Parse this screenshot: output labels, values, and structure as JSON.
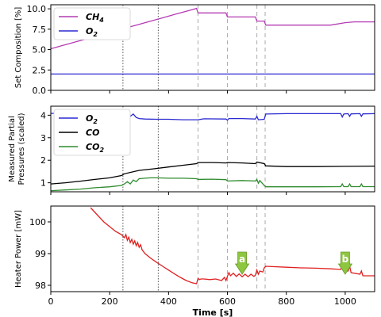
{
  "chart_data": [
    {
      "type": "line",
      "ylabel": "Set Composition [%]",
      "xlim": [
        0,
        1100
      ],
      "ylim": [
        0,
        10.5
      ],
      "yticks": [
        0.0,
        2.5,
        5.0,
        7.5,
        10.0
      ],
      "yticklabels": [
        "0.0",
        "2.5",
        "5.0",
        "7.5",
        "10.0"
      ],
      "grid": false,
      "legend": "top-left",
      "series": [
        {
          "name": "CH",
          "name_subscript": "4",
          "color": "#b43cb4",
          "x": [
            0,
            20,
            40,
            60,
            80,
            100,
            120,
            140,
            160,
            180,
            200,
            220,
            240,
            260,
            280,
            300,
            320,
            340,
            360,
            380,
            400,
            420,
            440,
            460,
            480,
            495,
            500,
            595,
            600,
            695,
            700,
            725,
            730,
            950,
            1000,
            1030,
            1100
          ],
          "y": [
            5.1,
            5.3,
            5.5,
            5.7,
            5.9,
            6.1,
            6.3,
            6.5,
            6.7,
            6.9,
            7.1,
            7.3,
            7.5,
            7.7,
            7.9,
            8.1,
            8.3,
            8.5,
            8.7,
            8.9,
            9.1,
            9.3,
            9.5,
            9.7,
            9.9,
            10.05,
            9.5,
            9.5,
            9.0,
            9.0,
            8.5,
            8.5,
            8.0,
            8.0,
            8.3,
            8.4,
            8.4
          ]
        },
        {
          "name": "O",
          "name_subscript": "2",
          "color": "#2a2ad0",
          "x": [
            0,
            1100
          ],
          "y": [
            2.0,
            2.0
          ]
        }
      ]
    },
    {
      "type": "line",
      "ylabel": [
        "Measured Partial",
        "Pressures (scaled)"
      ],
      "xlim": [
        0,
        1100
      ],
      "ylim": [
        0.6,
        4.4
      ],
      "yticks": [
        1,
        2,
        3,
        4
      ],
      "yticklabels": [
        "1",
        "2",
        "3",
        "4"
      ],
      "grid": false,
      "legend": "top-left",
      "series": [
        {
          "name": "O",
          "name_subscript": "2",
          "color": "#2a2ad0",
          "x": [
            0,
            100,
            200,
            240,
            250,
            270,
            280,
            290,
            300,
            320,
            360,
            400,
            450,
            500,
            520,
            595,
            600,
            605,
            650,
            695,
            700,
            705,
            725,
            730,
            800,
            900,
            985,
            990,
            995,
            1010,
            1015,
            1020,
            1050,
            1055,
            1060,
            1100
          ],
          "y": [
            4.08,
            4.1,
            4.1,
            4.08,
            4.0,
            3.95,
            4.05,
            3.9,
            3.85,
            3.83,
            3.82,
            3.82,
            3.8,
            3.8,
            3.84,
            3.83,
            3.78,
            3.85,
            3.85,
            3.83,
            3.95,
            3.8,
            3.82,
            4.05,
            4.07,
            4.07,
            4.07,
            3.92,
            4.05,
            4.07,
            3.95,
            4.06,
            4.07,
            3.95,
            4.06,
            4.07
          ]
        },
        {
          "name": "CO",
          "name_subscript": "",
          "color": "#000000",
          "x": [
            0,
            50,
            100,
            150,
            200,
            240,
            250,
            300,
            350,
            400,
            450,
            495,
            500,
            550,
            595,
            600,
            650,
            695,
            700,
            725,
            730,
            800,
            900,
            1000,
            1100
          ],
          "y": [
            0.95,
            1.0,
            1.07,
            1.15,
            1.22,
            1.32,
            1.4,
            1.55,
            1.62,
            1.7,
            1.78,
            1.85,
            1.9,
            1.9,
            1.88,
            1.9,
            1.88,
            1.85,
            1.92,
            1.85,
            1.75,
            1.72,
            1.72,
            1.73,
            1.74
          ]
        },
        {
          "name": "CO",
          "name_subscript": "2",
          "color": "#2e8b2e",
          "x": [
            0,
            50,
            100,
            150,
            200,
            240,
            250,
            260,
            270,
            280,
            290,
            300,
            320,
            340,
            360,
            400,
            450,
            495,
            500,
            550,
            595,
            600,
            650,
            695,
            700,
            705,
            710,
            725,
            730,
            800,
            900,
            985,
            990,
            995,
            1010,
            1015,
            1020,
            1050,
            1055,
            1060,
            1100
          ],
          "y": [
            0.65,
            0.68,
            0.72,
            0.78,
            0.82,
            0.88,
            0.95,
            1.05,
            0.95,
            1.12,
            1.05,
            1.18,
            1.2,
            1.22,
            1.22,
            1.2,
            1.2,
            1.18,
            1.15,
            1.16,
            1.14,
            1.08,
            1.1,
            1.08,
            1.15,
            0.98,
            1.1,
            0.88,
            0.82,
            0.82,
            0.82,
            0.83,
            0.95,
            0.83,
            0.83,
            0.95,
            0.83,
            0.83,
            0.95,
            0.83,
            0.83
          ]
        }
      ]
    },
    {
      "type": "line",
      "ylabel": "Heater Power [mW]",
      "xlabel": "Time [s]",
      "xlim": [
        0,
        1100
      ],
      "ylim": [
        97.8,
        100.5
      ],
      "xticks": [
        0,
        200,
        400,
        600,
        800,
        1000
      ],
      "xticklabels": [
        "0",
        "200",
        "400",
        "600",
        "800",
        "1000"
      ],
      "yticks": [
        98,
        99,
        100
      ],
      "yticklabels": [
        "98",
        "99",
        "100"
      ],
      "grid": false,
      "series": [
        {
          "name": "",
          "color": "#e02020",
          "x": [
            135,
            160,
            180,
            200,
            220,
            240,
            250,
            255,
            260,
            265,
            270,
            275,
            280,
            285,
            290,
            295,
            300,
            305,
            310,
            320,
            340,
            360,
            380,
            400,
            420,
            440,
            460,
            480,
            495,
            500,
            505,
            510,
            520,
            540,
            560,
            580,
            590,
            595,
            600,
            605,
            610,
            620,
            630,
            640,
            650,
            660,
            670,
            680,
            690,
            695,
            700,
            705,
            710,
            720,
            725,
            730,
            800,
            850,
            900,
            950,
            985,
            990,
            995,
            1010,
            1015,
            1020,
            1050,
            1055,
            1060,
            1100
          ],
          "y": [
            100.45,
            100.2,
            100.0,
            99.85,
            99.7,
            99.6,
            99.5,
            99.6,
            99.42,
            99.52,
            99.35,
            99.45,
            99.3,
            99.4,
            99.25,
            99.35,
            99.2,
            99.28,
            99.12,
            99.0,
            98.85,
            98.72,
            98.6,
            98.48,
            98.36,
            98.25,
            98.15,
            98.08,
            98.05,
            98.22,
            98.18,
            98.2,
            98.2,
            98.18,
            98.2,
            98.15,
            98.25,
            98.15,
            98.28,
            98.4,
            98.3,
            98.38,
            98.28,
            98.36,
            98.27,
            98.35,
            98.27,
            98.35,
            98.28,
            98.32,
            98.48,
            98.35,
            98.45,
            98.42,
            98.55,
            98.6,
            98.57,
            98.55,
            98.54,
            98.52,
            98.5,
            98.65,
            98.47,
            98.45,
            98.6,
            98.4,
            98.35,
            98.45,
            98.3,
            98.3
          ]
        }
      ]
    }
  ],
  "event_markers": [
    {
      "x": 245,
      "style": "dotted",
      "color": "#555555"
    },
    {
      "x": 365,
      "style": "dotted",
      "color": "#555555"
    },
    {
      "x": 500,
      "style": "dashed",
      "color": "#aaaaaa"
    },
    {
      "x": 600,
      "style": "dashed",
      "color": "#aaaaaa"
    },
    {
      "x": 700,
      "style": "dashed",
      "color": "#aaaaaa"
    },
    {
      "x": 728,
      "style": "dashed",
      "color": "#aaaaaa"
    }
  ],
  "annotations": [
    {
      "label": "a",
      "x": 650,
      "y": 98.65,
      "color": "#8dc63f"
    },
    {
      "label": "b",
      "x": 1000,
      "y": 98.65,
      "color": "#8dc63f"
    }
  ]
}
